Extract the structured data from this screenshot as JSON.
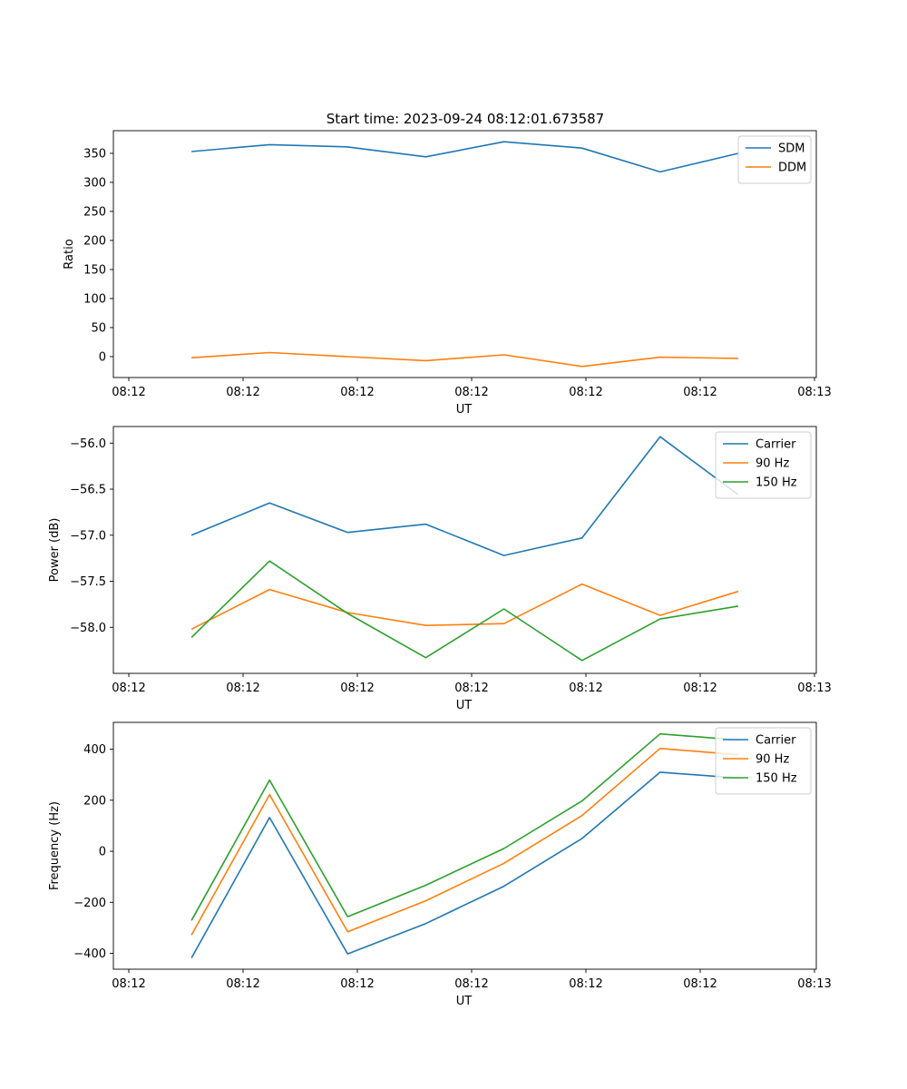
{
  "figure": {
    "title": "Start time: 2023-09-24 08:12:01.673587"
  },
  "chart_data": [
    {
      "type": "line",
      "title": "Start time: 2023-09-24 08:12:01.673587",
      "xlabel": "UT",
      "ylabel": "Ratio",
      "x_tick_labels": [
        "08:12",
        "08:12",
        "08:12",
        "08:12",
        "08:12",
        "08:12",
        "08:13"
      ],
      "x": [
        1,
        2,
        3,
        4,
        5,
        6,
        7,
        8
      ],
      "xlim": [
        0,
        9
      ],
      "ylim": [
        -36,
        389
      ],
      "y_ticks": [
        0,
        50,
        100,
        150,
        200,
        250,
        300,
        350
      ],
      "legend_position": "top-right",
      "grid": false,
      "series": [
        {
          "name": "SDM",
          "color": "#1f77b4",
          "values": [
            353,
            365,
            361,
            344,
            370,
            359,
            318,
            350
          ]
        },
        {
          "name": "DDM",
          "color": "#ff7f0e",
          "values": [
            -2,
            7,
            0,
            -7,
            3,
            -17,
            -1,
            -3
          ]
        }
      ]
    },
    {
      "type": "line",
      "title": "",
      "xlabel": "UT",
      "ylabel": "Power (dB)",
      "x_tick_labels": [
        "08:12",
        "08:12",
        "08:12",
        "08:12",
        "08:12",
        "08:12",
        "08:13"
      ],
      "x": [
        1,
        2,
        3,
        4,
        5,
        6,
        7,
        8
      ],
      "xlim": [
        0,
        9
      ],
      "ylim": [
        -58.5,
        -55.82
      ],
      "y_ticks": [
        -58.0,
        -57.5,
        -57.0,
        -56.5,
        -56.0
      ],
      "legend_position": "top-right",
      "grid": false,
      "series": [
        {
          "name": "Carrier",
          "color": "#1f77b4",
          "values": [
            -57.0,
            -56.65,
            -56.97,
            -56.88,
            -57.22,
            -57.03,
            -55.93,
            -56.56
          ]
        },
        {
          "name": "90 Hz",
          "color": "#ff7f0e",
          "values": [
            -58.02,
            -57.59,
            -57.84,
            -57.98,
            -57.96,
            -57.53,
            -57.87,
            -57.61
          ]
        },
        {
          "name": "150 Hz",
          "color": "#2ca02c",
          "values": [
            -58.11,
            -57.28,
            -57.85,
            -58.33,
            -57.8,
            -58.36,
            -57.91,
            -57.77
          ]
        }
      ]
    },
    {
      "type": "line",
      "title": "",
      "xlabel": "UT",
      "ylabel": "Frequency (Hz)",
      "x_tick_labels": [
        "08:12",
        "08:12",
        "08:12",
        "08:12",
        "08:12",
        "08:12",
        "08:13"
      ],
      "x": [
        1,
        2,
        3,
        4,
        5,
        6,
        7,
        8
      ],
      "xlim": [
        0,
        9
      ],
      "ylim": [
        -462,
        505
      ],
      "y_ticks": [
        -400,
        -200,
        0,
        200,
        400
      ],
      "legend_position": "top-right",
      "grid": false,
      "series": [
        {
          "name": "Carrier",
          "color": "#1f77b4",
          "values": [
            -418,
            132,
            -402,
            -283,
            -137,
            50,
            310,
            287
          ]
        },
        {
          "name": "90 Hz",
          "color": "#ff7f0e",
          "values": [
            -328,
            222,
            -315,
            -194,
            -47,
            140,
            403,
            378
          ]
        },
        {
          "name": "150 Hz",
          "color": "#2ca02c",
          "values": [
            -271,
            279,
            -256,
            -133,
            11,
            197,
            460,
            436
          ]
        }
      ]
    }
  ]
}
